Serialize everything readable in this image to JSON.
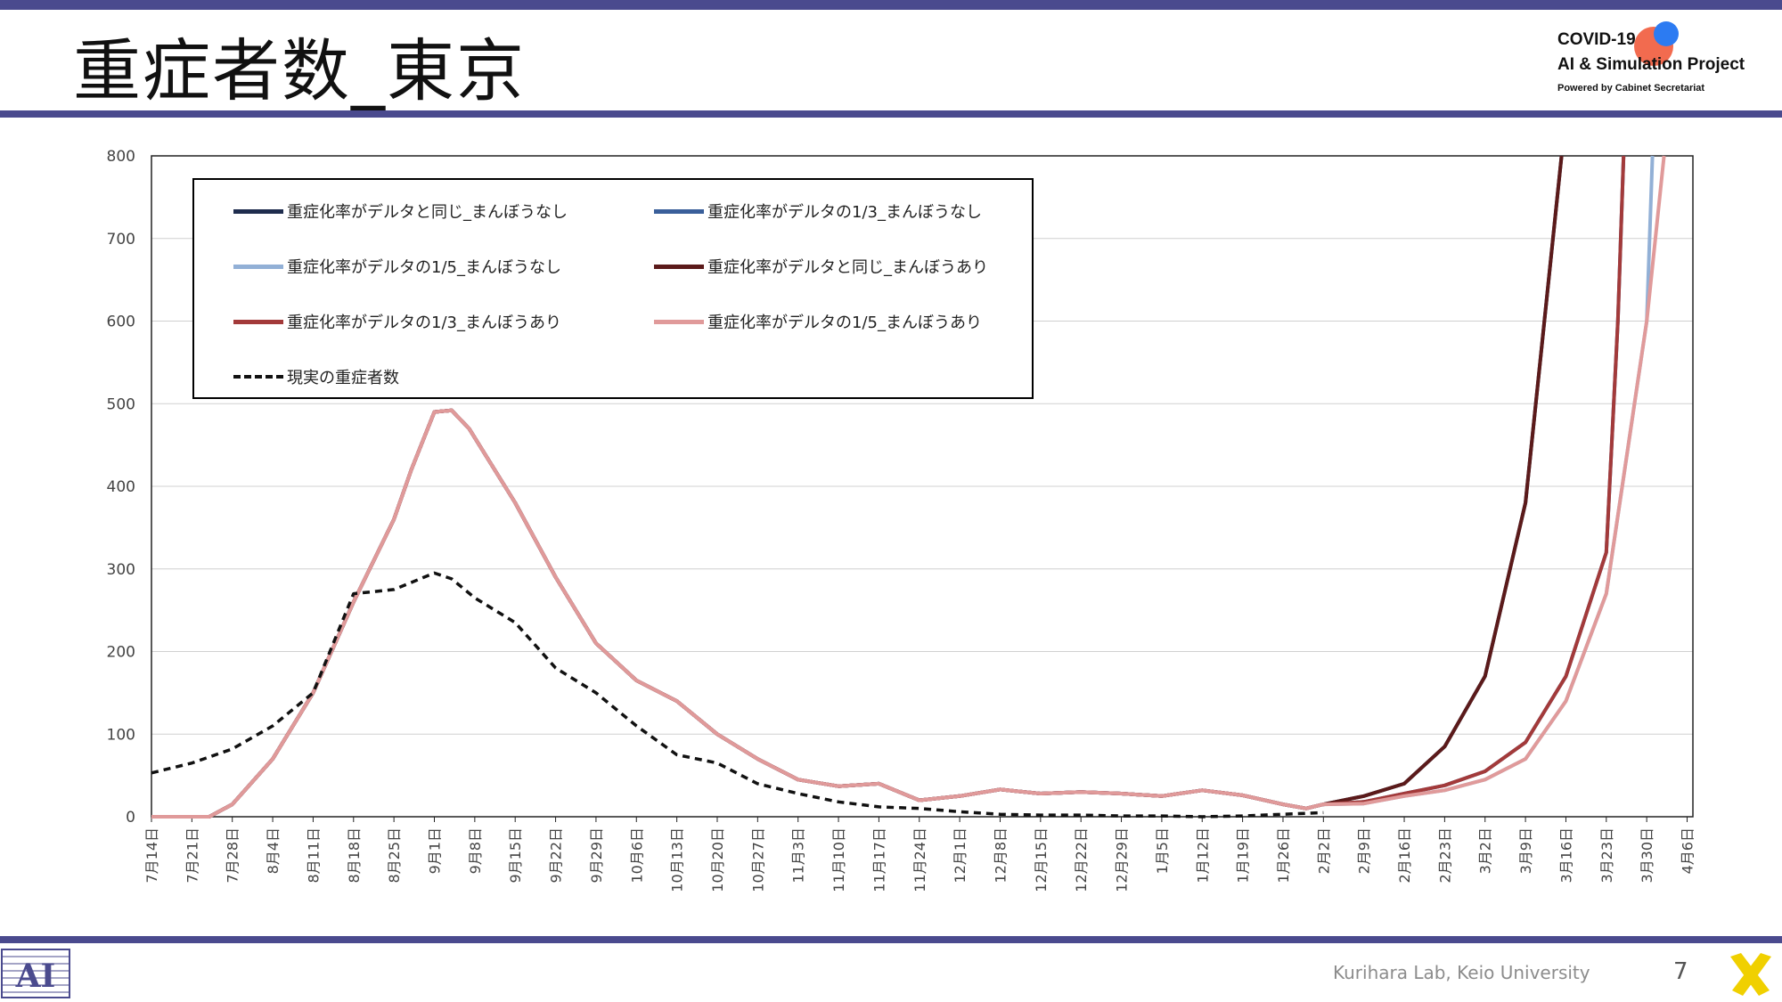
{
  "slide": {
    "title": "重症者数_東京",
    "brand_line1": "COVID-19",
    "brand_line2": "AI & Simulation Project",
    "brand_line3": "Powered by Cabinet Secretariat",
    "credit": "Kurihara Lab, Keio University",
    "page_number": "7"
  },
  "chart_data": {
    "type": "line",
    "title": "",
    "xlabel": "",
    "ylabel": "",
    "ylim": [
      0,
      800
    ],
    "yticks": [
      0,
      100,
      200,
      300,
      400,
      500,
      600,
      700,
      800
    ],
    "grid": true,
    "legend_position": "top-left",
    "x_start": "7月14日",
    "x_days": 267,
    "x_ticks": [
      "7月14日",
      "7月21日",
      "7月28日",
      "8月4日",
      "8月11日",
      "8月18日",
      "8月25日",
      "9月1日",
      "9月8日",
      "9月15日",
      "9月22日",
      "9月29日",
      "10月6日",
      "10月13日",
      "10月20日",
      "10月27日",
      "11月3日",
      "11月10日",
      "11月17日",
      "11月24日",
      "12月1日",
      "12月8日",
      "12月15日",
      "12月22日",
      "12月29日",
      "1月5日",
      "1月12日",
      "1月19日",
      "1月26日",
      "2月2日",
      "2月9日",
      "2月16日",
      "2月23日",
      "3月2日",
      "3月9日",
      "3月16日",
      "3月23日",
      "3月30日",
      "4月6日"
    ],
    "series": [
      {
        "name": "重症化率がデルタと同じ_まんぼうなし",
        "color": "#1f2d4e",
        "dash": false,
        "x_days": [
          0,
          7,
          10,
          14,
          21,
          28,
          35,
          42,
          45,
          49,
          52,
          55,
          63,
          70,
          77,
          84,
          91,
          98,
          105,
          112,
          119,
          126,
          133,
          140,
          147,
          154,
          161,
          168,
          175,
          182,
          189,
          196,
          200,
          203,
          210,
          217,
          224,
          231,
          238,
          245,
          252,
          254,
          255
        ],
        "values": [
          0,
          0,
          0,
          15,
          70,
          150,
          260,
          360,
          420,
          490,
          492,
          470,
          380,
          290,
          210,
          165,
          140,
          100,
          70,
          45,
          37,
          40,
          20,
          25,
          33,
          28,
          30,
          28,
          25,
          32,
          26,
          15,
          10,
          15,
          25,
          40,
          85,
          170,
          380,
          850,
          850,
          850,
          850
        ]
      },
      {
        "name": "重症化率がデルタの1/3_まんぼうなし",
        "color": "#3a5f9a",
        "dash": false,
        "x_days": [
          0,
          7,
          10,
          14,
          21,
          28,
          35,
          42,
          45,
          49,
          52,
          55,
          63,
          70,
          77,
          84,
          91,
          98,
          105,
          112,
          119,
          126,
          133,
          140,
          147,
          154,
          161,
          168,
          175,
          182,
          189,
          196,
          200,
          203,
          210,
          217,
          224,
          231,
          238,
          245,
          252,
          254,
          255
        ],
        "values": [
          0,
          0,
          0,
          15,
          70,
          150,
          260,
          360,
          420,
          490,
          492,
          470,
          380,
          290,
          210,
          165,
          140,
          100,
          70,
          45,
          37,
          40,
          20,
          25,
          33,
          28,
          30,
          28,
          25,
          32,
          26,
          15,
          10,
          15,
          18,
          28,
          38,
          55,
          90,
          170,
          320,
          600,
          800
        ]
      },
      {
        "name": "重症化率がデルタの1/5_まんぼうなし",
        "color": "#92b0d6",
        "dash": false,
        "x_days": [
          0,
          7,
          10,
          14,
          21,
          28,
          35,
          42,
          45,
          49,
          52,
          55,
          63,
          70,
          77,
          84,
          91,
          98,
          105,
          112,
          119,
          126,
          133,
          140,
          147,
          154,
          161,
          168,
          175,
          182,
          189,
          196,
          200,
          203,
          210,
          217,
          224,
          231,
          238,
          245,
          252,
          259,
          260
        ],
        "values": [
          0,
          0,
          0,
          15,
          70,
          150,
          260,
          360,
          420,
          490,
          492,
          470,
          380,
          290,
          210,
          165,
          140,
          100,
          70,
          45,
          37,
          40,
          20,
          25,
          33,
          28,
          30,
          28,
          25,
          32,
          26,
          15,
          10,
          15,
          16,
          25,
          32,
          45,
          70,
          140,
          270,
          600,
          800
        ]
      },
      {
        "name": "重症化率がデルタと同じ_まんぼうあり",
        "color": "#5b1a1a",
        "dash": false,
        "x_days": [
          0,
          7,
          10,
          14,
          21,
          28,
          35,
          42,
          45,
          49,
          52,
          55,
          63,
          70,
          77,
          84,
          91,
          98,
          105,
          112,
          119,
          126,
          133,
          140,
          147,
          154,
          161,
          168,
          175,
          182,
          189,
          196,
          200,
          203,
          210,
          217,
          224,
          231,
          238,
          245,
          252
        ],
        "values": [
          0,
          0,
          0,
          15,
          70,
          150,
          260,
          360,
          420,
          490,
          492,
          470,
          380,
          290,
          210,
          165,
          140,
          100,
          70,
          45,
          37,
          40,
          20,
          25,
          33,
          28,
          30,
          28,
          25,
          32,
          26,
          15,
          10,
          15,
          25,
          40,
          85,
          170,
          380,
          850,
          850
        ]
      },
      {
        "name": "重症化率がデルタの1/3_まんぼうあり",
        "color": "#a33a3a",
        "dash": false,
        "x_days": [
          0,
          7,
          10,
          14,
          21,
          28,
          35,
          42,
          45,
          49,
          52,
          55,
          63,
          70,
          77,
          84,
          91,
          98,
          105,
          112,
          119,
          126,
          133,
          140,
          147,
          154,
          161,
          168,
          175,
          182,
          189,
          196,
          200,
          203,
          210,
          217,
          224,
          231,
          238,
          245,
          252,
          254,
          255
        ],
        "values": [
          0,
          0,
          0,
          15,
          70,
          150,
          260,
          360,
          420,
          490,
          492,
          470,
          380,
          290,
          210,
          165,
          140,
          100,
          70,
          45,
          37,
          40,
          20,
          25,
          33,
          28,
          30,
          28,
          25,
          32,
          26,
          15,
          10,
          15,
          18,
          28,
          38,
          55,
          90,
          170,
          320,
          600,
          800
        ]
      },
      {
        "name": "重症化率がデルタの1/5_まんぼうあり",
        "color": "#e09a9a",
        "dash": false,
        "x_days": [
          0,
          7,
          10,
          14,
          21,
          28,
          35,
          42,
          45,
          49,
          52,
          55,
          63,
          70,
          77,
          84,
          91,
          98,
          105,
          112,
          119,
          126,
          133,
          140,
          147,
          154,
          161,
          168,
          175,
          182,
          189,
          196,
          200,
          203,
          210,
          217,
          224,
          231,
          238,
          245,
          252,
          259,
          262
        ],
        "values": [
          0,
          0,
          0,
          15,
          70,
          150,
          260,
          360,
          420,
          490,
          492,
          470,
          380,
          290,
          210,
          165,
          140,
          100,
          70,
          45,
          37,
          40,
          20,
          25,
          33,
          28,
          30,
          28,
          25,
          32,
          26,
          15,
          10,
          15,
          16,
          25,
          32,
          45,
          70,
          140,
          270,
          600,
          800
        ]
      },
      {
        "name": "現実の重症者数",
        "color": "#111111",
        "dash": true,
        "x_days": [
          0,
          7,
          14,
          21,
          28,
          35,
          42,
          49,
          52,
          56,
          63,
          70,
          77,
          84,
          91,
          98,
          105,
          112,
          119,
          126,
          133,
          140,
          147,
          154,
          161,
          168,
          175,
          182,
          189,
          196,
          203
        ],
        "values": [
          53,
          65,
          82,
          110,
          150,
          270,
          275,
          295,
          288,
          265,
          235,
          180,
          150,
          110,
          75,
          65,
          40,
          28,
          18,
          12,
          10,
          6,
          3,
          2,
          2,
          1,
          1,
          0,
          1,
          3,
          5
        ]
      }
    ]
  }
}
